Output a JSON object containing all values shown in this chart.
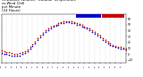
{
  "title": "Milwaukee Weather  Outdoor Temperature\nvs Wind Chill\nper Minute\n(24 Hours)",
  "title_fontsize": 2.8,
  "bg_color": "#ffffff",
  "plot_bg_color": "#ffffff",
  "line_color_temp": "#cc0000",
  "line_color_wind": "#0000cc",
  "y_ticks": [
    -10,
    0,
    10,
    20,
    30,
    40,
    50,
    60
  ],
  "ylim": [
    -15,
    68
  ],
  "xlim": [
    0,
    1440
  ],
  "grid_color": "#aaaaaa",
  "dot_size": 1.5,
  "temp_data_x": [
    0,
    30,
    60,
    90,
    120,
    150,
    180,
    210,
    240,
    270,
    300,
    330,
    360,
    390,
    420,
    450,
    480,
    510,
    540,
    570,
    600,
    630,
    660,
    690,
    720,
    750,
    780,
    810,
    840,
    870,
    900,
    930,
    960,
    990,
    1020,
    1050,
    1080,
    1110,
    1140,
    1170,
    1200,
    1230,
    1260,
    1290,
    1320,
    1350,
    1380,
    1410,
    1440
  ],
  "temp_data_y": [
    6,
    5,
    4,
    3,
    2,
    1,
    1,
    2,
    3,
    5,
    8,
    12,
    17,
    22,
    27,
    32,
    36,
    40,
    43,
    46,
    48,
    50,
    52,
    54,
    55,
    56,
    56,
    55,
    54,
    52,
    51,
    49,
    47,
    45,
    43,
    40,
    37,
    34,
    31,
    27,
    24,
    21,
    18,
    16,
    14,
    13,
    12,
    11,
    10
  ],
  "wind_data_x": [
    0,
    30,
    60,
    90,
    120,
    150,
    180,
    210,
    240,
    270,
    300,
    330,
    360,
    390,
    420,
    450,
    480,
    510,
    540,
    570,
    600,
    630,
    660,
    690,
    720,
    750,
    780,
    810,
    840,
    870,
    900,
    930,
    960,
    990,
    1020,
    1050,
    1080,
    1110,
    1140,
    1170,
    1200,
    1230,
    1260,
    1290,
    1320,
    1350,
    1380,
    1410,
    1440
  ],
  "wind_data_y": [
    2,
    1,
    0,
    -1,
    -3,
    -3,
    -3,
    -2,
    0,
    2,
    5,
    9,
    14,
    19,
    24,
    29,
    33,
    37,
    41,
    44,
    46,
    48,
    50,
    52,
    53,
    54,
    54,
    53,
    52,
    50,
    49,
    47,
    45,
    43,
    41,
    38,
    35,
    32,
    29,
    25,
    22,
    19,
    16,
    14,
    12,
    11,
    10,
    9,
    8
  ],
  "hour_positions": [
    0,
    60,
    120,
    180,
    240,
    300,
    360,
    420,
    480,
    540,
    600,
    660,
    720,
    780,
    840,
    900,
    960,
    1020,
    1080,
    1140,
    1200,
    1260,
    1320,
    1380
  ],
  "hour_labels": [
    "01",
    "02",
    "03",
    "04",
    "05",
    "06",
    "07",
    "08",
    "09",
    "10",
    "11",
    "12",
    "13",
    "14",
    "15",
    "16",
    "17",
    "18",
    "19",
    "20",
    "21",
    "22",
    "23",
    "24"
  ]
}
